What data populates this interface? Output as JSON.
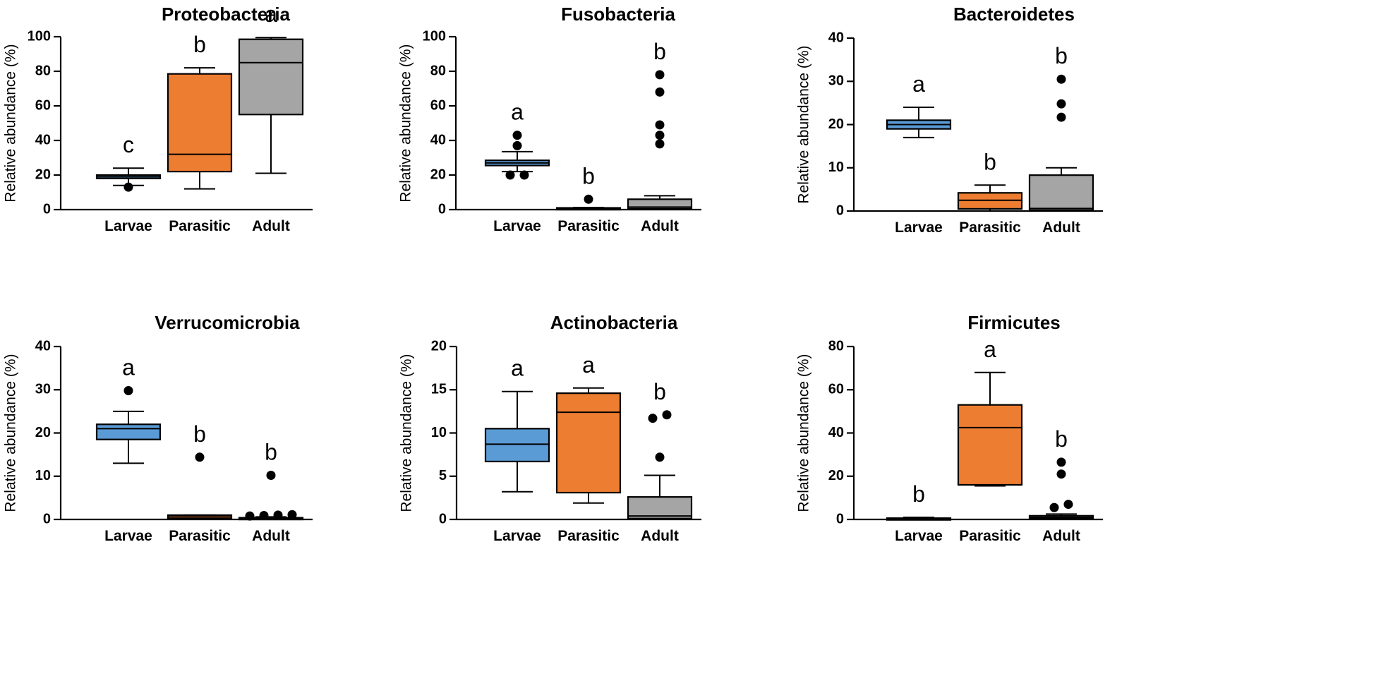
{
  "chart_data": [
    {
      "type": "box",
      "title": "Proteobacteria",
      "ylabel": "Relative abundance (%)",
      "xlabel": "",
      "ylim": [
        0,
        100
      ],
      "yticks": [
        0,
        20,
        40,
        60,
        80,
        100
      ],
      "categories": [
        "Larvae",
        "Parasitic",
        "Adult"
      ],
      "boxes": [
        {
          "group": "Larvae",
          "whisker_low": 14,
          "q1": 18,
          "median": 19,
          "q3": 20,
          "whisker_high": 24,
          "outliers": [
            13
          ],
          "significance": "c"
        },
        {
          "group": "Parasitic",
          "whisker_low": 12,
          "q1": 22,
          "median": 32,
          "q3": 78.5,
          "whisker_high": 82,
          "outliers": [],
          "significance": "b"
        },
        {
          "group": "Adult",
          "whisker_low": 21,
          "q1": 55,
          "median": 85,
          "q3": 98.5,
          "whisker_high": 99.5,
          "outliers": [],
          "significance": "a"
        }
      ]
    },
    {
      "type": "box",
      "title": "Fusobacteria",
      "ylabel": "Relative abundance (%)",
      "xlabel": "",
      "ylim": [
        0,
        100
      ],
      "yticks": [
        0,
        20,
        40,
        60,
        80,
        100
      ],
      "categories": [
        "Larvae",
        "Parasitic",
        "Adult"
      ],
      "boxes": [
        {
          "group": "Larvae",
          "whisker_low": 22,
          "q1": 25.5,
          "median": 27,
          "q3": 28.5,
          "whisker_high": 33.5,
          "outliers": [
            20,
            20,
            37,
            43
          ],
          "significance": "a"
        },
        {
          "group": "Parasitic",
          "whisker_low": 0,
          "q1": 0.3,
          "median": 0.6,
          "q3": 1,
          "whisker_high": 1.2,
          "outliers": [
            6
          ],
          "significance": "b"
        },
        {
          "group": "Adult",
          "whisker_low": 0,
          "q1": 0.5,
          "median": 1.5,
          "q3": 6,
          "whisker_high": 8,
          "outliers": [
            38,
            43,
            49,
            68,
            78
          ],
          "significance": "b"
        }
      ]
    },
    {
      "type": "box",
      "title": "Bacteroidetes",
      "ylabel": "Relative abundance (%)",
      "xlabel": "",
      "ylim": [
        0,
        40
      ],
      "yticks": [
        0,
        10,
        20,
        30,
        40
      ],
      "categories": [
        "Larvae",
        "Parasitic",
        "Adult"
      ],
      "boxes": [
        {
          "group": "Larvae",
          "whisker_low": 17,
          "q1": 19,
          "median": 20,
          "q3": 21,
          "whisker_high": 24,
          "outliers": [],
          "significance": "a"
        },
        {
          "group": "Parasitic",
          "whisker_low": 0,
          "q1": 0.5,
          "median": 2.5,
          "q3": 4.2,
          "whisker_high": 6,
          "outliers": [],
          "significance": "b"
        },
        {
          "group": "Adult",
          "whisker_low": 0,
          "q1": 0.2,
          "median": 0.6,
          "q3": 8.3,
          "whisker_high": 10,
          "outliers": [
            21.7,
            24.8,
            30.5
          ],
          "significance": "b"
        }
      ]
    },
    {
      "type": "box",
      "title": "Verrucomicrobia",
      "ylabel": "Relative abundance (%)",
      "xlabel": "",
      "ylim": [
        0,
        40
      ],
      "yticks": [
        0,
        10,
        20,
        30,
        40
      ],
      "categories": [
        "Larvae",
        "Parasitic",
        "Adult"
      ],
      "boxes": [
        {
          "group": "Larvae",
          "whisker_low": 13,
          "q1": 18.5,
          "median": 21,
          "q3": 22,
          "whisker_high": 25,
          "outliers": [
            29.8
          ],
          "significance": "a"
        },
        {
          "group": "Parasitic",
          "whisker_low": 0,
          "q1": 0.2,
          "median": 0.6,
          "q3": 1,
          "whisker_high": 1,
          "outliers": [
            14.4
          ],
          "significance": "b"
        },
        {
          "group": "Adult",
          "whisker_low": 0,
          "q1": 0.1,
          "median": 0.2,
          "q3": 0.4,
          "whisker_high": 0.6,
          "outliers": [
            0.8,
            0.9,
            1.0,
            1.1,
            10.2
          ],
          "significance": "b"
        }
      ]
    },
    {
      "type": "box",
      "title": "Actinobacteria",
      "ylabel": "Relative abundance (%)",
      "xlabel": "",
      "ylim": [
        0,
        20
      ],
      "yticks": [
        0,
        5,
        10,
        15,
        20
      ],
      "categories": [
        "Larvae",
        "Parasitic",
        "Adult"
      ],
      "boxes": [
        {
          "group": "Larvae",
          "whisker_low": 3.2,
          "q1": 6.7,
          "median": 8.7,
          "q3": 10.5,
          "whisker_high": 14.8,
          "outliers": [],
          "significance": "a"
        },
        {
          "group": "Parasitic",
          "whisker_low": 1.9,
          "q1": 3.1,
          "median": 12.4,
          "q3": 14.6,
          "whisker_high": 15.2,
          "outliers": [],
          "significance": "a"
        },
        {
          "group": "Adult",
          "whisker_low": 0,
          "q1": 0.1,
          "median": 0.4,
          "q3": 2.6,
          "whisker_high": 5.1,
          "outliers": [
            7.2,
            11.7,
            12.1
          ],
          "significance": "b"
        }
      ]
    },
    {
      "type": "box",
      "title": "Firmicutes",
      "ylabel": "Relative abundance (%)",
      "xlabel": "",
      "ylim": [
        0,
        80
      ],
      "yticks": [
        0,
        20,
        40,
        60,
        80
      ],
      "categories": [
        "Larvae",
        "Parasitic",
        "Adult"
      ],
      "boxes": [
        {
          "group": "Larvae",
          "whisker_low": 0,
          "q1": 0.2,
          "median": 0.4,
          "q3": 0.6,
          "whisker_high": 1,
          "outliers": [],
          "significance": "b"
        },
        {
          "group": "Parasitic",
          "whisker_low": 15.5,
          "q1": 16,
          "median": 42.5,
          "q3": 53,
          "whisker_high": 68,
          "outliers": [],
          "significance": "a"
        },
        {
          "group": "Adult",
          "whisker_low": 0,
          "q1": 0.3,
          "median": 1,
          "q3": 1.7,
          "whisker_high": 2.5,
          "outliers": [
            5.5,
            7,
            21,
            26.5
          ],
          "significance": "b"
        }
      ]
    }
  ],
  "colors": {
    "Larvae": "#5b9bd5",
    "Parasitic": "#ed7d31",
    "Adult": "#a5a5a5",
    "stroke": "#000000"
  }
}
